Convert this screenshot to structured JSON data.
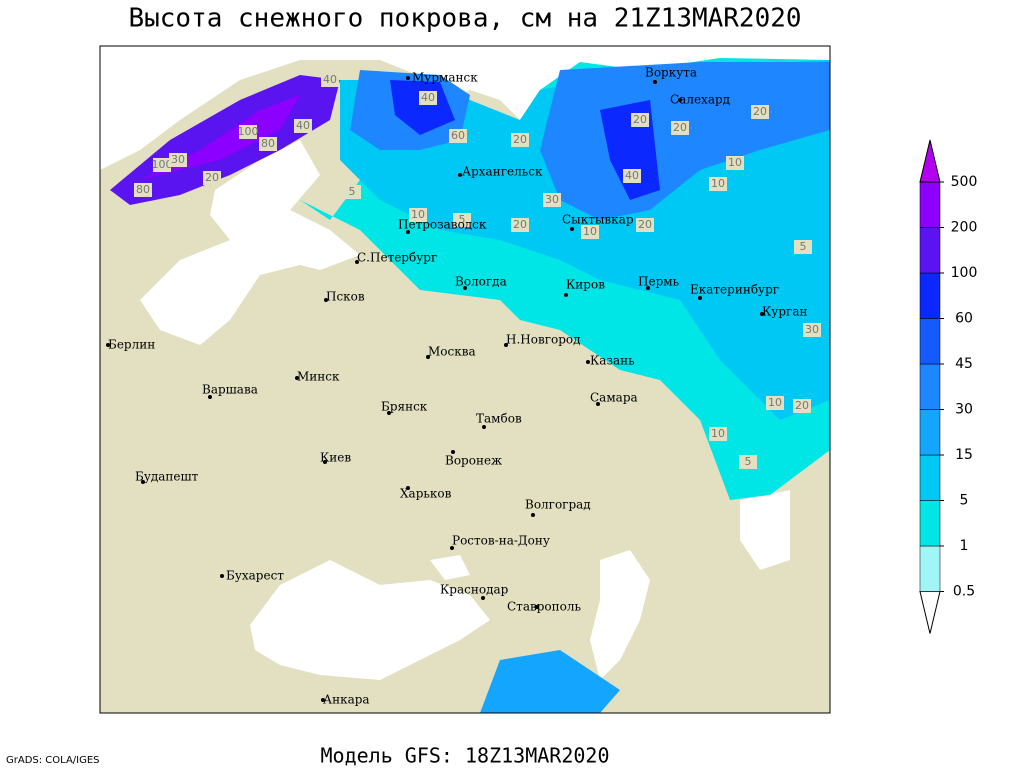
{
  "header": {
    "title": "Высота снежного покрова, см на 21Z13MAR2020"
  },
  "footer": {
    "credit": "GrADS: COLA/IGES",
    "model": "Модель GFS: 18Z13MAR2020"
  },
  "map": {
    "land_color": "#e2e0c0",
    "cities": [
      "Мурманск",
      "Воркута",
      "Салехард",
      "Архангельск",
      "Петрозаводск",
      "Сыктывкар",
      "С.Петербург",
      "Вологда",
      "Киров",
      "Пермь",
      "Екатеринбург",
      "Курган",
      "Псков",
      "Берлин",
      "Н.Новгород",
      "Москва",
      "Казань",
      "Минск",
      "Варшава",
      "Самара",
      "Брянск",
      "Тамбов",
      "Киев",
      "Воронеж",
      "Будапешт",
      "Харьков",
      "Волгоград",
      "Ростов-на-Дону",
      "Бухарест",
      "Краснодар",
      "Ставрополь",
      "Анкара"
    ],
    "contour_labels": [
      40,
      40,
      60,
      40,
      100,
      80,
      100,
      20,
      80,
      30,
      20,
      20,
      20,
      40,
      30,
      10,
      5,
      10,
      20,
      20,
      20,
      10,
      10,
      5,
      30,
      10,
      20,
      10,
      5,
      5
    ]
  },
  "colorbar": {
    "levels": [
      0.5,
      1,
      5,
      15,
      30,
      45,
      60,
      100,
      200,
      500
    ],
    "colors": [
      "#ffffff",
      "#a0f5f5",
      "#00e6e6",
      "#00c8f5",
      "#14a5ff",
      "#1e87ff",
      "#145aff",
      "#0a28ff",
      "#5a14f0",
      "#8c00ff",
      "#b400f0"
    ]
  }
}
